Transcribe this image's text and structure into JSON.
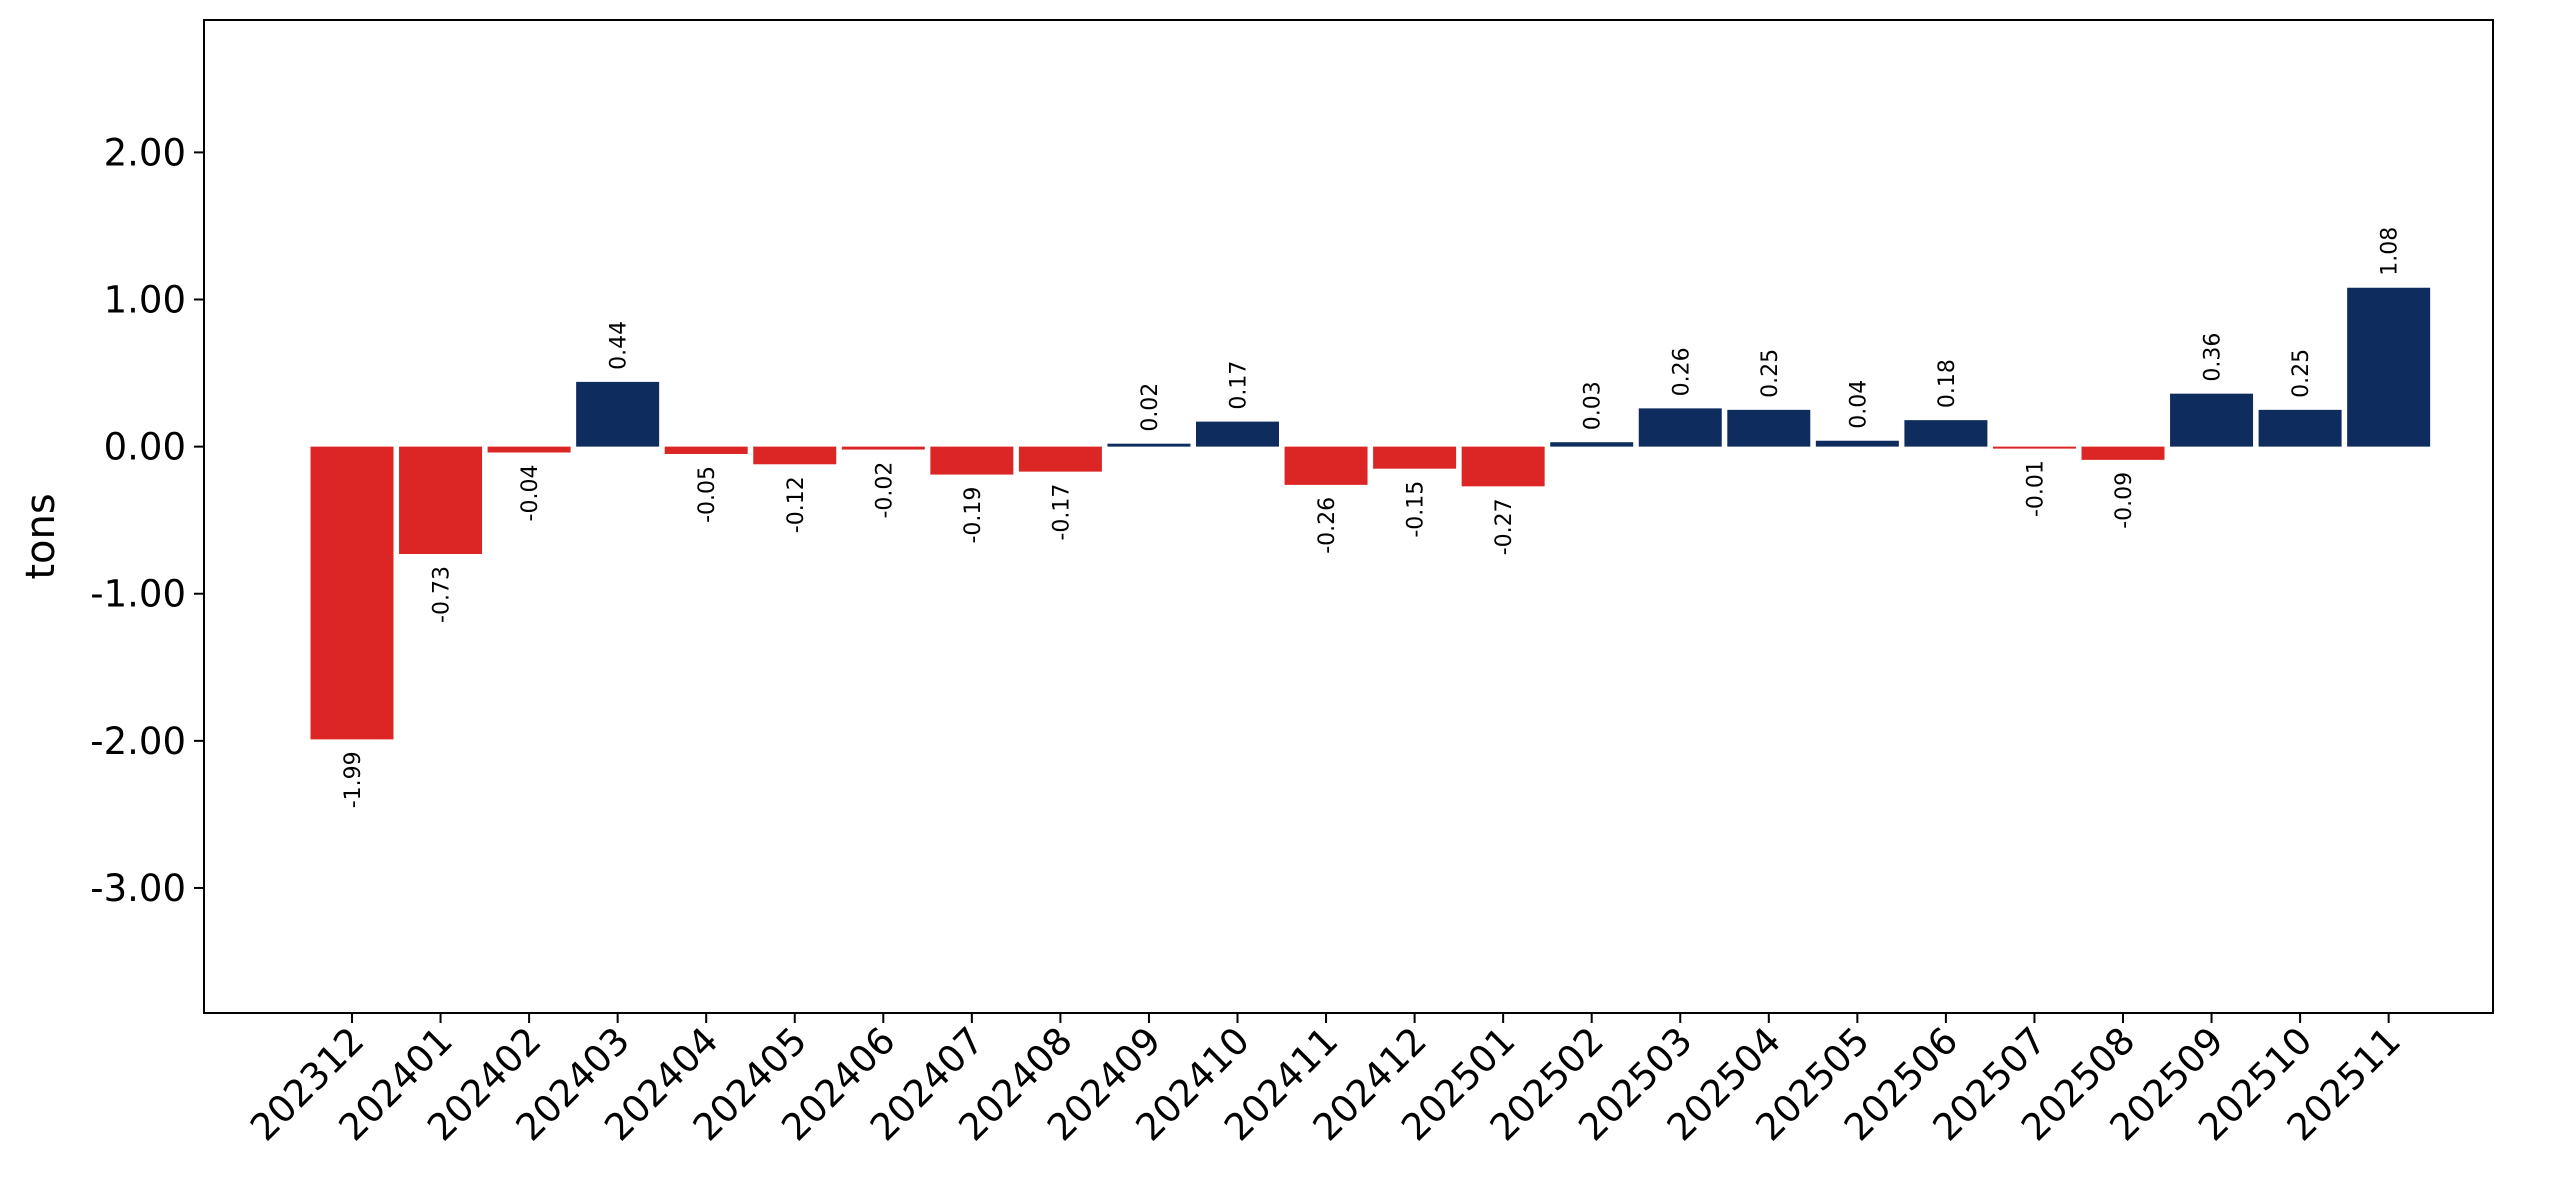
{
  "chart_data": {
    "type": "bar",
    "title": "",
    "xlabel": "",
    "ylabel": "tons",
    "ylim": [
      -3.85,
      2.9
    ],
    "yticks": [
      -3,
      -2,
      -1,
      0,
      1,
      2
    ],
    "ytick_labels": [
      "-3.00",
      "-2.00",
      "-1.00",
      "0.00",
      "1.00",
      "2.00"
    ],
    "grid": false,
    "legend": "none",
    "colors": {
      "positive": "#0e2d5e",
      "negative": "#dc2626"
    },
    "categories": [
      "202312",
      "202401",
      "202402",
      "202403",
      "202404",
      "202405",
      "202406",
      "202407",
      "202408",
      "202409",
      "202410",
      "202411",
      "202412",
      "202501",
      "202502",
      "202503",
      "202504",
      "202505",
      "202506",
      "202507",
      "202508",
      "202509",
      "202510",
      "202511"
    ],
    "values": [
      -1.99,
      -0.73,
      -0.04,
      0.44,
      -0.05,
      -0.12,
      -0.02,
      -0.19,
      -0.17,
      0.02,
      0.17,
      -0.26,
      -0.15,
      -0.27,
      0.03,
      0.26,
      0.25,
      0.04,
      0.18,
      -0.01,
      -0.09,
      0.36,
      0.25,
      1.08
    ],
    "value_labels": [
      "-1.99",
      "-0.73",
      "-0.04",
      "0.44",
      "-0.05",
      "-0.12",
      "-0.02",
      "-0.19",
      "-0.17",
      "0.02",
      "0.17",
      "-0.26",
      "-0.15",
      "-0.27",
      "0.03",
      "0.26",
      "0.25",
      "0.04",
      "0.18",
      "-0.01",
      "-0.09",
      "0.36",
      "0.25",
      "1.08"
    ]
  }
}
